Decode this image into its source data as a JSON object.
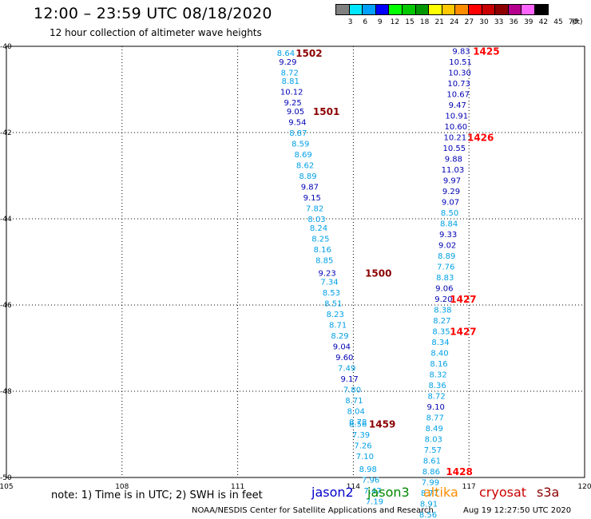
{
  "header": {
    "title": "12:00 – 23:59 UTC 08/18/2020",
    "subtitle": "12 hour collection of altimeter wave heights"
  },
  "legend": {
    "colors": [
      "#808080",
      "#00e8ff",
      "#00a0ff",
      "#0000ff",
      "#00ff00",
      "#00c800",
      "#009600",
      "#ffff00",
      "#ffc800",
      "#ff8c00",
      "#ff0000",
      "#c80000",
      "#8c0000",
      "#b4008c",
      "#ff64ff",
      "#000000"
    ],
    "labels": [
      "3",
      "6",
      "9",
      "12",
      "15",
      "18",
      "21",
      "24",
      "27",
      "30",
      "33",
      "36",
      "39",
      "42",
      "45",
      "70"
    ],
    "unit": "(ft)"
  },
  "axes": {
    "lon_ticks": [
      "105",
      "108",
      "111",
      "114",
      "117",
      "120"
    ],
    "lat_ticks": [
      "-40",
      "-42",
      "-44",
      "-46",
      "-48",
      "-50"
    ]
  },
  "chart_data": {
    "type": "scatter",
    "xlim": [
      105,
      120
    ],
    "ylim": [
      -50,
      -40
    ],
    "grid": true,
    "track_west": [
      {
        "lon": 112.25,
        "lat": -40.15,
        "v": "8.64",
        "c": "lb"
      },
      {
        "lon": 112.3,
        "lat": -40.35,
        "v": "9.29",
        "c": "db"
      },
      {
        "lon": 112.35,
        "lat": -40.6,
        "v": "8.72",
        "c": "lb"
      },
      {
        "lon": 112.37,
        "lat": -40.8,
        "v": "8.81",
        "c": "lb"
      },
      {
        "lon": 112.4,
        "lat": -41.05,
        "v": "10.12",
        "c": "db"
      },
      {
        "lon": 112.43,
        "lat": -41.3,
        "v": "9.25",
        "c": "db"
      },
      {
        "lon": 112.5,
        "lat": -41.5,
        "v": "9.05",
        "c": "db"
      },
      {
        "lon": 112.55,
        "lat": -41.75,
        "v": "9.54",
        "c": "db"
      },
      {
        "lon": 112.57,
        "lat": -42.0,
        "v": "8.87",
        "c": "lb"
      },
      {
        "lon": 112.63,
        "lat": -42.25,
        "v": "8.59",
        "c": "lb"
      },
      {
        "lon": 112.7,
        "lat": -42.5,
        "v": "8.69",
        "c": "lb"
      },
      {
        "lon": 112.75,
        "lat": -42.75,
        "v": "8.62",
        "c": "lb"
      },
      {
        "lon": 112.82,
        "lat": -43.0,
        "v": "8.89",
        "c": "lb"
      },
      {
        "lon": 112.87,
        "lat": -43.25,
        "v": "9.87",
        "c": "db"
      },
      {
        "lon": 112.93,
        "lat": -43.5,
        "v": "9.15",
        "c": "db"
      },
      {
        "lon": 113.0,
        "lat": -43.75,
        "v": "7.82",
        "c": "lb"
      },
      {
        "lon": 113.05,
        "lat": -44.0,
        "v": "8.03",
        "c": "lb"
      },
      {
        "lon": 113.1,
        "lat": -44.2,
        "v": "8.24",
        "c": "lb"
      },
      {
        "lon": 113.15,
        "lat": -44.45,
        "v": "8.25",
        "c": "lb"
      },
      {
        "lon": 113.2,
        "lat": -44.7,
        "v": "8.16",
        "c": "lb"
      },
      {
        "lon": 113.25,
        "lat": -44.95,
        "v": "8.85",
        "c": "lb"
      },
      {
        "lon": 113.32,
        "lat": -45.25,
        "v": "9.23",
        "c": "db"
      },
      {
        "lon": 113.38,
        "lat": -45.45,
        "v": "7.34",
        "c": "lb"
      },
      {
        "lon": 113.43,
        "lat": -45.7,
        "v": "8.53",
        "c": "lb"
      },
      {
        "lon": 113.48,
        "lat": -45.95,
        "v": "8.51",
        "c": "lb"
      },
      {
        "lon": 113.53,
        "lat": -46.2,
        "v": "8.23",
        "c": "lb"
      },
      {
        "lon": 113.6,
        "lat": -46.45,
        "v": "8.71",
        "c": "lb"
      },
      {
        "lon": 113.65,
        "lat": -46.7,
        "v": "8.29",
        "c": "lb"
      },
      {
        "lon": 113.7,
        "lat": -46.95,
        "v": "9.04",
        "c": "db"
      },
      {
        "lon": 113.77,
        "lat": -47.2,
        "v": "9.60",
        "c": "db"
      },
      {
        "lon": 113.83,
        "lat": -47.45,
        "v": "7.49",
        "c": "lb"
      },
      {
        "lon": 113.9,
        "lat": -47.7,
        "v": "9.17",
        "c": "db"
      },
      {
        "lon": 113.97,
        "lat": -47.95,
        "v": "7.80",
        "c": "lb"
      },
      {
        "lon": 114.02,
        "lat": -48.2,
        "v": "8.71",
        "c": "lb"
      },
      {
        "lon": 114.07,
        "lat": -48.45,
        "v": "8.04",
        "c": "lb"
      },
      {
        "lon": 114.12,
        "lat": -48.7,
        "v": "8.78",
        "c": "lb"
      },
      {
        "lon": 114.12,
        "lat": -48.75,
        "v": "8.56",
        "c": "lb"
      },
      {
        "lon": 114.2,
        "lat": -49.0,
        "v": "7.39",
        "c": "lb"
      },
      {
        "lon": 114.25,
        "lat": -49.25,
        "v": "7.26",
        "c": "lb"
      },
      {
        "lon": 114.3,
        "lat": -49.5,
        "v": "7.10",
        "c": "lb"
      },
      {
        "lon": 114.38,
        "lat": -49.8,
        "v": "8.98",
        "c": "lb"
      },
      {
        "lon": 114.45,
        "lat": -50.05,
        "v": "7.96",
        "c": "lb"
      },
      {
        "lon": 114.5,
        "lat": -50.3,
        "v": "7.47",
        "c": "lb"
      },
      {
        "lon": 114.55,
        "lat": -50.55,
        "v": "7.19",
        "c": "lb"
      }
    ],
    "track_east": [
      {
        "lon": 116.8,
        "lat": -40.1,
        "v": "9.83",
        "c": "db"
      },
      {
        "lon": 116.78,
        "lat": -40.35,
        "v": "10.51",
        "c": "db"
      },
      {
        "lon": 116.76,
        "lat": -40.6,
        "v": "10.30",
        "c": "db"
      },
      {
        "lon": 116.74,
        "lat": -40.85,
        "v": "10.73",
        "c": "db"
      },
      {
        "lon": 116.72,
        "lat": -41.1,
        "v": "10.67",
        "c": "db"
      },
      {
        "lon": 116.7,
        "lat": -41.35,
        "v": "9.47",
        "c": "db"
      },
      {
        "lon": 116.68,
        "lat": -41.6,
        "v": "10.91",
        "c": "db"
      },
      {
        "lon": 116.66,
        "lat": -41.85,
        "v": "10.60",
        "c": "db"
      },
      {
        "lon": 116.64,
        "lat": -42.1,
        "v": "10.21",
        "c": "db"
      },
      {
        "lon": 116.62,
        "lat": -42.35,
        "v": "10.55",
        "c": "db"
      },
      {
        "lon": 116.6,
        "lat": -42.6,
        "v": "9.88",
        "c": "db"
      },
      {
        "lon": 116.58,
        "lat": -42.85,
        "v": "11.03",
        "c": "db"
      },
      {
        "lon": 116.56,
        "lat": -43.1,
        "v": "9.97",
        "c": "db"
      },
      {
        "lon": 116.54,
        "lat": -43.35,
        "v": "9.29",
        "c": "db"
      },
      {
        "lon": 116.52,
        "lat": -43.6,
        "v": "9.07",
        "c": "db"
      },
      {
        "lon": 116.5,
        "lat": -43.85,
        "v": "8.50",
        "c": "lb"
      },
      {
        "lon": 116.48,
        "lat": -44.1,
        "v": "8.84",
        "c": "lb"
      },
      {
        "lon": 116.46,
        "lat": -44.35,
        "v": "9.33",
        "c": "db"
      },
      {
        "lon": 116.44,
        "lat": -44.6,
        "v": "9.02",
        "c": "db"
      },
      {
        "lon": 116.42,
        "lat": -44.85,
        "v": "8.89",
        "c": "lb"
      },
      {
        "lon": 116.4,
        "lat": -45.1,
        "v": "7.76",
        "c": "lb"
      },
      {
        "lon": 116.38,
        "lat": -45.35,
        "v": "8.83",
        "c": "lb"
      },
      {
        "lon": 116.36,
        "lat": -45.6,
        "v": "9.06",
        "c": "db"
      },
      {
        "lon": 116.34,
        "lat": -45.85,
        "v": "9.20",
        "c": "db"
      },
      {
        "lon": 116.32,
        "lat": -46.1,
        "v": "8.38",
        "c": "lb"
      },
      {
        "lon": 116.3,
        "lat": -46.35,
        "v": "8.27",
        "c": "lb"
      },
      {
        "lon": 116.28,
        "lat": -46.6,
        "v": "8.35",
        "c": "lb"
      },
      {
        "lon": 116.26,
        "lat": -46.85,
        "v": "8.34",
        "c": "lb"
      },
      {
        "lon": 116.24,
        "lat": -47.1,
        "v": "8.40",
        "c": "lb"
      },
      {
        "lon": 116.22,
        "lat": -47.35,
        "v": "8.16",
        "c": "lb"
      },
      {
        "lon": 116.2,
        "lat": -47.6,
        "v": "8.32",
        "c": "lb"
      },
      {
        "lon": 116.18,
        "lat": -47.85,
        "v": "8.36",
        "c": "lb"
      },
      {
        "lon": 116.16,
        "lat": -48.1,
        "v": "8.72",
        "c": "lb"
      },
      {
        "lon": 116.14,
        "lat": -48.35,
        "v": "9.10",
        "c": "db"
      },
      {
        "lon": 116.12,
        "lat": -48.6,
        "v": "8.77",
        "c": "lb"
      },
      {
        "lon": 116.1,
        "lat": -48.85,
        "v": "8.49",
        "c": "lb"
      },
      {
        "lon": 116.08,
        "lat": -49.1,
        "v": "8.03",
        "c": "lb"
      },
      {
        "lon": 116.06,
        "lat": -49.35,
        "v": "7.57",
        "c": "lb"
      },
      {
        "lon": 116.04,
        "lat": -49.6,
        "v": "8.61",
        "c": "lb"
      },
      {
        "lon": 116.02,
        "lat": -49.85,
        "v": "8.86",
        "c": "lb"
      },
      {
        "lon": 116.0,
        "lat": -50.1,
        "v": "7.99",
        "c": "lb"
      },
      {
        "lon": 115.98,
        "lat": -50.35,
        "v": "8.77",
        "c": "lb"
      },
      {
        "lon": 115.96,
        "lat": -50.6,
        "v": "8.91",
        "c": "lb"
      },
      {
        "lon": 115.94,
        "lat": -50.85,
        "v": "8.56",
        "c": "lb"
      }
    ],
    "time_labels": [
      {
        "lon": 112.85,
        "lat": -40.15,
        "t": "1502",
        "c": "#8b0000"
      },
      {
        "lon": 113.3,
        "lat": -41.5,
        "t": "1501",
        "c": "#8b0000"
      },
      {
        "lon": 114.65,
        "lat": -45.25,
        "t": "1500",
        "c": "#8b0000"
      },
      {
        "lon": 114.75,
        "lat": -48.75,
        "t": "1459",
        "c": "#8b0000"
      },
      {
        "lon": 117.45,
        "lat": -40.1,
        "t": "1425",
        "c": "#ff0000"
      },
      {
        "lon": 117.3,
        "lat": -42.1,
        "t": "1426",
        "c": "#ff0000"
      },
      {
        "lon": 116.85,
        "lat": -45.85,
        "t": "1427",
        "c": "#ff0000"
      },
      {
        "lon": 116.85,
        "lat": -46.6,
        "t": "1427",
        "c": "#ff0000"
      },
      {
        "lon": 116.75,
        "lat": -49.85,
        "t": "1428",
        "c": "#ff0000"
      }
    ]
  },
  "note_text": "note: 1) Time is in UTC; 2) SWH is in feet",
  "satellites": [
    {
      "name": "jason2",
      "color": "#0000cc"
    },
    {
      "name": "jason3",
      "color": "#008800"
    },
    {
      "name": "altika",
      "color": "#ff8c00"
    },
    {
      "name": "cryosat",
      "color": "#cc0000"
    },
    {
      "name": "s3a",
      "color": "#8b0000"
    }
  ],
  "footer": {
    "credit": "NOAA/NESDIS Center for Satellite Applications and Research",
    "timestamp": "Aug 19 12:27:50 UTC 2020"
  },
  "palette": {
    "lb": "#00a0e6",
    "db": "#0000b4"
  }
}
